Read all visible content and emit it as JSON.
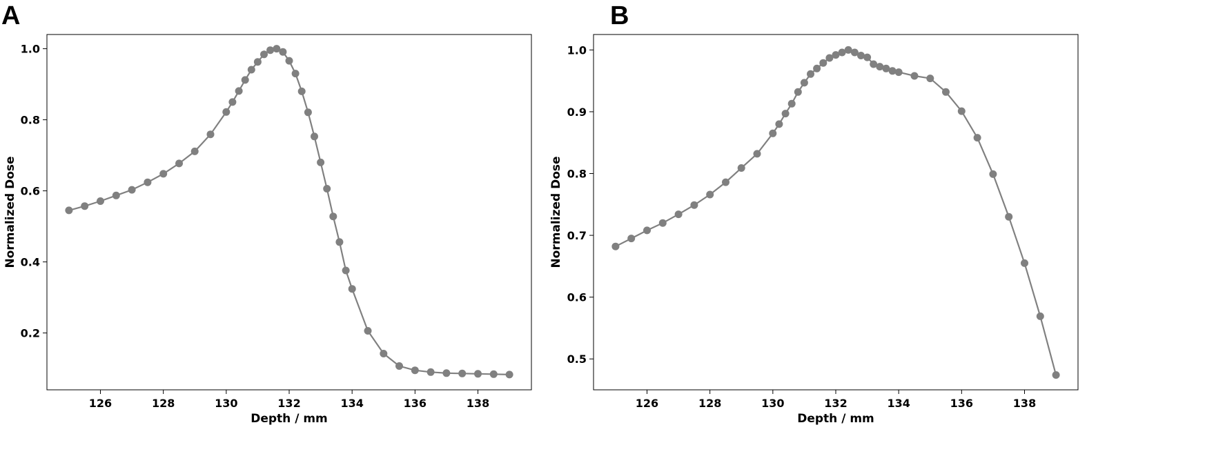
{
  "panels": [
    {
      "letter": "A"
    },
    {
      "letter": "B"
    }
  ],
  "chart_data": [
    {
      "type": "line",
      "title": "",
      "xlabel": "Depth / mm",
      "ylabel": "Normalized Dose",
      "xlim": [
        124.3,
        139.7
      ],
      "ylim": [
        0.04,
        1.04
      ],
      "xticks": [
        126,
        128,
        130,
        132,
        134,
        136,
        138
      ],
      "yticks": [
        0.2,
        0.4,
        0.6,
        0.8,
        1.0
      ],
      "ytick_labels": [
        "0.2",
        "0.4",
        "0.6",
        "0.8",
        "1.0"
      ],
      "grid": false,
      "legend": "none",
      "color": "#808080",
      "x": [
        125,
        125.5,
        126,
        126.5,
        127,
        127.5,
        128,
        128.5,
        129,
        129.5,
        130,
        130.2,
        130.4,
        130.6,
        130.8,
        131,
        131.2,
        131.4,
        131.6,
        131.8,
        132,
        132.2,
        132.4,
        132.6,
        132.8,
        133,
        133.2,
        133.4,
        133.6,
        133.8,
        134,
        134.5,
        135,
        135.5,
        136,
        136.5,
        137,
        137.5,
        138,
        138.5,
        139
      ],
      "y": [
        0.545,
        0.557,
        0.571,
        0.587,
        0.603,
        0.624,
        0.648,
        0.677,
        0.711,
        0.759,
        0.822,
        0.85,
        0.881,
        0.912,
        0.941,
        0.963,
        0.984,
        0.996,
        1.0,
        0.991,
        0.966,
        0.93,
        0.88,
        0.821,
        0.753,
        0.68,
        0.606,
        0.528,
        0.456,
        0.376,
        0.324,
        0.206,
        0.142,
        0.107,
        0.095,
        0.09,
        0.087,
        0.086,
        0.085,
        0.084,
        0.083
      ]
    },
    {
      "type": "line",
      "title": "",
      "xlabel": "Depth / mm",
      "ylabel": "Normalized Dose",
      "xlim": [
        124.3,
        139.7
      ],
      "ylim": [
        0.45,
        1.025
      ],
      "xticks": [
        126,
        128,
        130,
        132,
        134,
        136,
        138
      ],
      "yticks": [
        0.5,
        0.6,
        0.7,
        0.8,
        0.9,
        1.0
      ],
      "ytick_labels": [
        "0.5",
        "0.6",
        "0.7",
        "0.8",
        "0.9",
        "1.0"
      ],
      "grid": false,
      "legend": "none",
      "color": "#808080",
      "x": [
        125,
        125.5,
        126,
        126.5,
        127,
        127.5,
        128,
        128.5,
        129,
        129.5,
        130,
        130.2,
        130.4,
        130.6,
        130.8,
        131,
        131.2,
        131.4,
        131.6,
        131.8,
        132,
        132.2,
        132.4,
        132.6,
        132.8,
        133,
        133.2,
        133.4,
        133.6,
        133.8,
        134,
        134.5,
        135,
        135.5,
        136,
        136.5,
        137,
        137.5,
        138,
        138.5,
        139
      ],
      "y": [
        0.682,
        0.695,
        0.708,
        0.72,
        0.734,
        0.749,
        0.766,
        0.786,
        0.809,
        0.832,
        0.865,
        0.88,
        0.897,
        0.913,
        0.932,
        0.947,
        0.961,
        0.97,
        0.979,
        0.987,
        0.992,
        0.996,
        1.0,
        0.996,
        0.991,
        0.988,
        0.977,
        0.973,
        0.97,
        0.966,
        0.964,
        0.958,
        0.954,
        0.932,
        0.901,
        0.858,
        0.799,
        0.73,
        0.655,
        0.569,
        0.474
      ]
    }
  ]
}
